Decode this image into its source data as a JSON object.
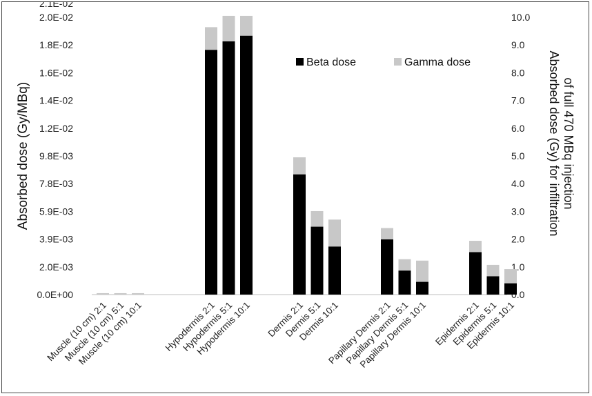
{
  "chart_data": {
    "type": "bar",
    "stacked": true,
    "categories": [
      "Muscle (10 cm)  2:1",
      "Muscle (10 cm)  5:1",
      "Muscle (10 cm)  10:1",
      "Hypodermis 2:1",
      "Hypodermis 5:1",
      "Hypodermis 10:1",
      "Dermis 2:1",
      "Dermis 5:1",
      "Dermis 10:1",
      "Papillary Dermis 2:1",
      "Papillary Dermis 5:1",
      "Papillary Dermis 10:1",
      "Epidermis 2:1",
      "Epidermis 5:1",
      "Epidermis 10:1"
    ],
    "series": [
      {
        "name": "Beta dose",
        "color": "#000000",
        "values": [
          0,
          0,
          0,
          0.0173,
          0.0179,
          0.0183,
          0.0085,
          0.0048,
          0.0034,
          0.0039,
          0.0017,
          0.0009,
          0.003,
          0.0013,
          0.0008
        ]
      },
      {
        "name": "Gamma dose",
        "color": "#c8c8c8",
        "values": [
          0.0001,
          0.0001,
          0.0001,
          0.0016,
          0.0018,
          0.0014,
          0.0012,
          0.0011,
          0.0019,
          0.0008,
          0.0008,
          0.0015,
          0.0008,
          0.0008,
          0.001
        ]
      }
    ],
    "ylabel": "Absorbed dose (Gy/MBq)",
    "y2label_lines": [
      "Absorbed dose (Gy) for infiltration",
      "of full 470 MBq injection"
    ],
    "ylim": [
      0,
      0.021
    ],
    "y2lim": [
      0,
      10.0
    ],
    "yticks": [
      0,
      0.00196,
      0.00393,
      0.00589,
      0.00785,
      0.0098,
      0.0118,
      0.0138,
      0.0158,
      0.0178,
      0.0198,
      0.021
    ],
    "ytick_labels": [
      "0.0E+00",
      "2.0E-03",
      "3.9E-03",
      "5.9E-03",
      "7.8E-03",
      "9.8E-03",
      "1.2E-02",
      "1.4E-02",
      "1.6E-02",
      "1.8E-02",
      "2.0E-02",
      "2.1E-02"
    ],
    "ytick_positions": [
      0,
      1,
      2,
      3,
      4,
      5,
      6,
      7,
      8,
      9,
      10,
      10.5
    ],
    "y2ticks": [
      0.0,
      1.0,
      2.0,
      3.0,
      4.0,
      5.0,
      6.0,
      7.0,
      8.0,
      9.0,
      10.0
    ],
    "y2tick_labels": [
      "0.0",
      "1.0",
      "2.0",
      "3.0",
      "4.0",
      "5.0",
      "6.0",
      "7.0",
      "8.0",
      "9.0",
      "10.0"
    ],
    "grid": false,
    "legend_position": "top-right"
  }
}
